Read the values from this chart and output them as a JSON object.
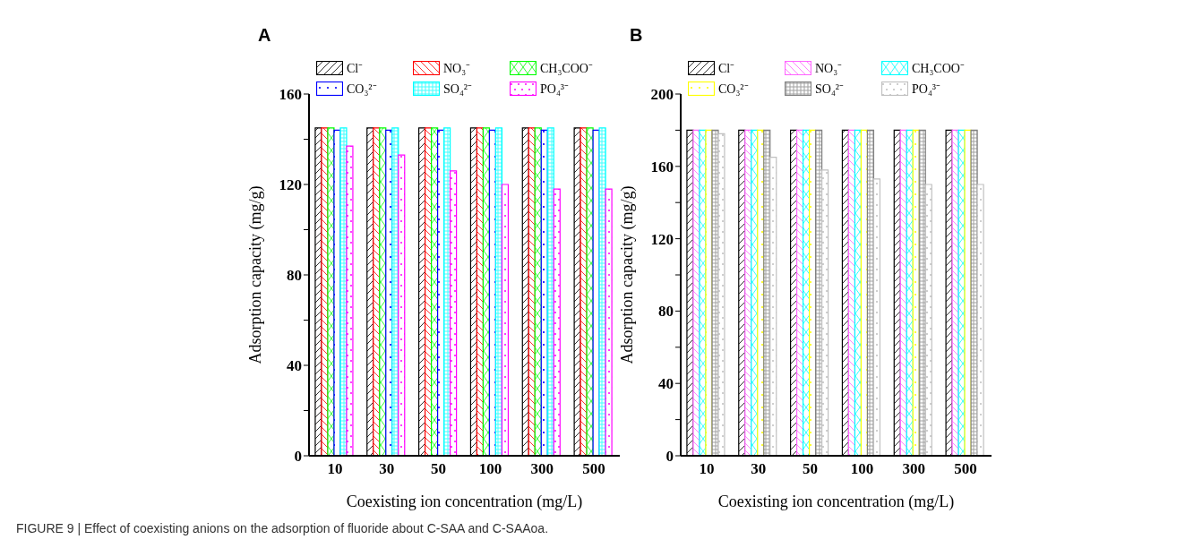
{
  "chart_data": [
    {
      "type": "bar",
      "title": "A",
      "xlabel": "Coexisting ion concentration (mg/L)",
      "ylabel": "Adsorption capacity (mg/g)",
      "categories": [
        "10",
        "30",
        "50",
        "100",
        "300",
        "500"
      ],
      "ylim": [
        0,
        160
      ],
      "yticks": [
        0,
        {
          "value": 20,
          "label": null
        },
        40,
        {
          "value": 60,
          "label": null
        },
        80,
        {
          "value": 100,
          "label": null
        },
        120,
        {
          "value": 140,
          "label": null
        },
        160
      ],
      "legend": "top",
      "grid": false,
      "series": [
        {
          "name": "Cl⁻",
          "color": "#000000",
          "values": [
            145,
            145,
            145,
            145,
            145,
            145
          ]
        },
        {
          "name": "NO₃⁻",
          "color": "#ff0000",
          "values": [
            145,
            145,
            145,
            145,
            145,
            145
          ]
        },
        {
          "name": "CH₃COO⁻",
          "color": "#00ff00",
          "values": [
            145,
            145,
            145,
            145,
            145,
            145
          ]
        },
        {
          "name": "CO₃²⁻",
          "color": "#0000ff",
          "values": [
            144,
            144,
            144,
            144,
            144,
            144
          ]
        },
        {
          "name": "SO₄²⁻",
          "color": "#00ffff",
          "values": [
            145,
            145,
            145,
            145,
            145,
            145
          ]
        },
        {
          "name": "PO₄³⁻",
          "color": "#ff00ff",
          "values": [
            137,
            133,
            126,
            120,
            118,
            118
          ]
        }
      ],
      "annotations": [
        "FIGURE 9 | Effect of coexisting anions on the adsorption of fluoride about C-SAA and C-SAAoa."
      ]
    },
    {
      "type": "bar",
      "title": "B",
      "xlabel": "Coexisting ion concentration (mg/L)",
      "ylabel": "Adsorption capacity (mg/g)",
      "categories": [
        "10",
        "30",
        "50",
        "100",
        "300",
        "500"
      ],
      "ylim": [
        0,
        200
      ],
      "yticks": [
        0,
        {
          "value": 20,
          "label": null
        },
        40,
        {
          "value": 60,
          "label": null
        },
        80,
        {
          "value": 100,
          "label": null
        },
        120,
        {
          "value": 140,
          "label": null
        },
        160,
        {
          "value": 180,
          "label": null
        },
        200
      ],
      "legend": "top",
      "grid": false,
      "series": [
        {
          "name": "Cl⁻",
          "color": "#000000",
          "values": [
            180,
            180,
            180,
            180,
            180,
            180
          ]
        },
        {
          "name": "NO₃⁻",
          "color": "#ff66ff",
          "values": [
            180,
            180,
            180,
            180,
            180,
            180
          ]
        },
        {
          "name": "CH₃COO⁻",
          "color": "#00ffff",
          "values": [
            180,
            180,
            180,
            180,
            180,
            180
          ]
        },
        {
          "name": "CO₃²⁻",
          "color": "#ffff00",
          "values": [
            180,
            180,
            180,
            180,
            180,
            180
          ]
        },
        {
          "name": "SO₄²⁻",
          "color": "#808080",
          "values": [
            180,
            180,
            180,
            180,
            180,
            180
          ]
        },
        {
          "name": "PO₄³⁻",
          "color": "#c0c0c0",
          "values": [
            178,
            165,
            158,
            153,
            150,
            150
          ]
        }
      ]
    }
  ]
}
